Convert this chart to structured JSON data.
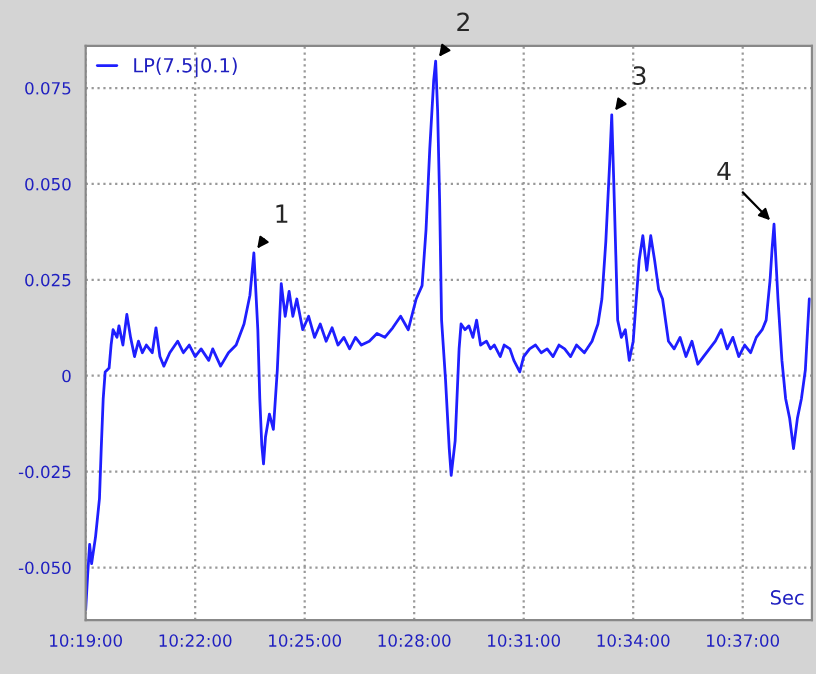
{
  "chart_data": {
    "type": "line",
    "xlabel": "Sec",
    "xlim": [
      10.3167,
      10.6483
    ],
    "ylim": [
      -0.0637,
      0.086
    ],
    "xticks": [
      {
        "value": 10.3167,
        "label": "10:19:00"
      },
      {
        "value": 10.3667,
        "label": "10:22:00"
      },
      {
        "value": 10.4167,
        "label": "10:25:00"
      },
      {
        "value": 10.4667,
        "label": "10:28:00"
      },
      {
        "value": 10.5167,
        "label": "10:31:00"
      },
      {
        "value": 10.5667,
        "label": "10:34:00"
      },
      {
        "value": 10.6167,
        "label": "10:37:00"
      }
    ],
    "yticks": [
      {
        "value": -0.05,
        "label": "-0.050"
      },
      {
        "value": -0.025,
        "label": "-0.025"
      },
      0,
      {
        "value": 0.025,
        "label": "0.025"
      },
      {
        "value": 0.05,
        "label": "0.050"
      },
      {
        "value": 0.075,
        "label": "0.075"
      }
    ],
    "grid": true,
    "legend": "top left",
    "marker": "none",
    "line_style": "solid",
    "annotations": [
      {
        "text": "1",
        "x": 10.3935,
        "y": 0.032
      },
      {
        "text": "2",
        "x": 10.4765,
        "y": 0.082
      },
      {
        "text": "3",
        "x": 10.5569,
        "y": 0.068
      },
      {
        "text": "4",
        "x": 10.631,
        "y": 0.0395
      }
    ],
    "series": [
      {
        "name": "LP(7.5|0.1)",
        "color": "#1f1fff",
        "x": [
          10.3167,
          10.3176,
          10.3185,
          10.3194,
          10.3212,
          10.323,
          10.3238,
          10.3247,
          10.3256,
          10.3274,
          10.3283,
          10.3292,
          10.331,
          10.3319,
          10.3337,
          10.3355,
          10.3372,
          10.339,
          10.3408,
          10.3426,
          10.3444,
          10.3471,
          10.3488,
          10.3506,
          10.3524,
          10.3551,
          10.3587,
          10.3613,
          10.364,
          10.3667,
          10.3694,
          10.3729,
          10.3747,
          10.3783,
          10.3819,
          10.3854,
          10.389,
          10.3917,
          10.3935,
          10.3953,
          10.3962,
          10.3971,
          10.3979,
          10.3988,
          10.4006,
          10.4024,
          10.4042,
          10.406,
          10.4078,
          10.4096,
          10.4113,
          10.4131,
          10.4158,
          10.4185,
          10.4212,
          10.4238,
          10.4265,
          10.4292,
          10.4319,
          10.4346,
          10.4372,
          10.4399,
          10.4426,
          10.4462,
          10.4497,
          10.4533,
          10.4569,
          10.4605,
          10.464,
          10.4676,
          10.4703,
          10.4721,
          10.4738,
          10.4756,
          10.4765,
          10.4774,
          10.4783,
          10.4792,
          10.481,
          10.4827,
          10.4836,
          10.4854,
          10.4872,
          10.4881,
          10.4899,
          10.4917,
          10.4935,
          10.4952,
          10.497,
          10.4997,
          10.5015,
          10.5033,
          10.506,
          10.5078,
          10.5104,
          10.5122,
          10.5149,
          10.5167,
          10.5194,
          10.5221,
          10.5247,
          10.5274,
          10.5301,
          10.5328,
          10.5354,
          10.5381,
          10.5408,
          10.5444,
          10.5479,
          10.5506,
          10.5524,
          10.5542,
          10.556,
          10.5569,
          10.5578,
          10.5596,
          10.5613,
          10.5631,
          10.5649,
          10.5667,
          10.5694,
          10.5711,
          10.5729,
          10.5747,
          10.5765,
          10.5783,
          10.5801,
          10.5828,
          10.5854,
          10.5881,
          10.5908,
          10.5935,
          10.5962,
          10.5988,
          10.6015,
          10.6042,
          10.6069,
          10.6096,
          10.6122,
          10.6149,
          10.6176,
          10.6203,
          10.6229,
          10.6256,
          10.6274,
          10.6292,
          10.6301,
          10.631,
          10.6328,
          10.6346,
          10.6363,
          10.6381,
          10.6399,
          10.6417,
          10.6435,
          10.6453,
          10.6471
        ],
        "values": [
          -0.061,
          -0.052,
          -0.044,
          -0.049,
          -0.042,
          -0.032,
          -0.019,
          -0.006,
          0.001,
          0.002,
          0.008,
          0.012,
          0.01,
          0.013,
          0.008,
          0.016,
          0.01,
          0.005,
          0.009,
          0.006,
          0.008,
          0.006,
          0.0125,
          0.005,
          0.0025,
          0.006,
          0.009,
          0.006,
          0.008,
          0.005,
          0.007,
          0.004,
          0.007,
          0.0025,
          0.006,
          0.008,
          0.0135,
          0.021,
          0.032,
          0.012,
          -0.006,
          -0.018,
          -0.023,
          -0.016,
          -0.01,
          -0.014,
          0.0015,
          0.024,
          0.0155,
          0.022,
          0.0155,
          0.02,
          0.012,
          0.0155,
          0.01,
          0.0135,
          0.009,
          0.0125,
          0.008,
          0.01,
          0.007,
          0.01,
          0.008,
          0.009,
          0.011,
          0.01,
          0.0125,
          0.0155,
          0.012,
          0.02,
          0.0235,
          0.038,
          0.059,
          0.077,
          0.082,
          0.069,
          0.046,
          0.0145,
          -0.001,
          -0.019,
          -0.026,
          -0.017,
          0.007,
          0.0135,
          0.012,
          0.013,
          0.01,
          0.0145,
          0.008,
          0.009,
          0.007,
          0.008,
          0.005,
          0.008,
          0.007,
          0.004,
          0.001,
          0.005,
          0.007,
          0.008,
          0.006,
          0.007,
          0.005,
          0.008,
          0.007,
          0.005,
          0.008,
          0.006,
          0.009,
          0.0135,
          0.02,
          0.035,
          0.056,
          0.068,
          0.051,
          0.0145,
          0.01,
          0.012,
          0.004,
          0.009,
          0.03,
          0.0365,
          0.0275,
          0.0365,
          0.03,
          0.0225,
          0.02,
          0.009,
          0.007,
          0.01,
          0.005,
          0.009,
          0.003,
          0.005,
          0.007,
          0.009,
          0.012,
          0.007,
          0.01,
          0.005,
          0.008,
          0.006,
          0.01,
          0.012,
          0.0145,
          0.025,
          0.033,
          0.0395,
          0.02,
          0.004,
          -0.006,
          -0.011,
          -0.019,
          -0.011,
          -0.006,
          0.0015,
          0.02
        ]
      }
    ]
  }
}
